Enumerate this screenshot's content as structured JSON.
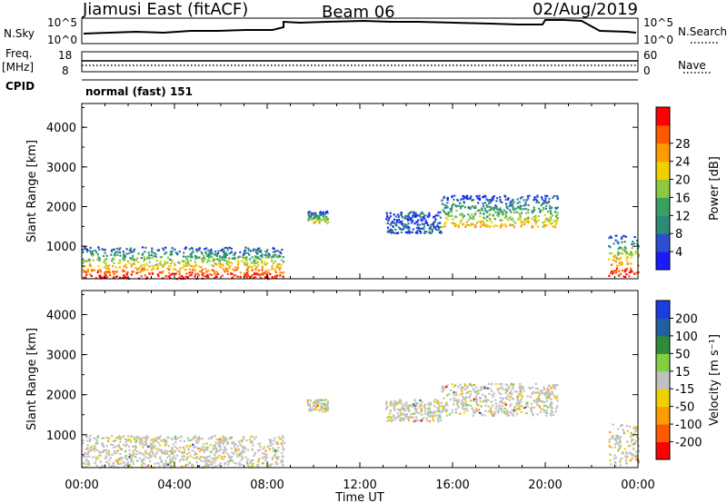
{
  "header": {
    "radar": "Jiamusi East (fitACF)",
    "beam": "Beam 06",
    "date": "02/Aug/2019"
  },
  "sky_panel": {
    "left_label": "N.Sky",
    "left_ticks": [
      "10^5",
      "10^0"
    ],
    "right_ticks": [
      "10^5",
      "10^0"
    ],
    "right_label": "N.Search"
  },
  "freq_panel": {
    "left_label_1": "Freq.",
    "left_label_2": "[MHz]",
    "left_ticks": [
      "18",
      "8"
    ],
    "right_ticks": [
      "60",
      "0"
    ],
    "right_label": "Nave"
  },
  "cpid": {
    "label": "CPID",
    "value": "normal (fast) 151"
  },
  "colors": {
    "power_scale": [
      "#1a1aff",
      "#2a4fd0",
      "#2b8a78",
      "#3aa060",
      "#8cc840",
      "#f0d000",
      "#ff9a00",
      "#ff5a00",
      "#ff0000"
    ],
    "velocity_scale": [
      "#1a3fe0",
      "#2060a0",
      "#2f8a3a",
      "#80d040",
      "#c0c0c0",
      "#f0d000",
      "#ff9a00",
      "#ff5a00",
      "#ff0000"
    ]
  },
  "chart_data": [
    {
      "type": "heatmap",
      "title": "",
      "ylabel": "Slant Range [km]",
      "xlabel": "Time UT",
      "x_ticks": [
        "00:00",
        "04:00",
        "08:00",
        "12:00",
        "16:00",
        "20:00",
        "00:00"
      ],
      "y_ticks": [
        "1000",
        "2000",
        "3000",
        "4000"
      ],
      "ylim": [
        180,
        4600
      ],
      "colorbar_label": "Power [dB]",
      "colorbar_ticks": [
        "4",
        "8",
        "12",
        "16",
        "20",
        "24",
        "28"
      ],
      "echo_regions": [
        {
          "t_start": 0.0,
          "t_end": 8.7,
          "range_low": 200,
          "range_high": 1000,
          "level": "strong"
        },
        {
          "t_start": 9.7,
          "t_end": 10.6,
          "range_low": 1600,
          "range_high": 1900,
          "level": "medium"
        },
        {
          "t_start": 13.1,
          "t_end": 15.5,
          "range_low": 1350,
          "range_high": 1900,
          "level": "weak"
        },
        {
          "t_start": 15.5,
          "t_end": 20.5,
          "range_low": 1500,
          "range_high": 2300,
          "level": "medium"
        },
        {
          "t_start": 22.7,
          "t_end": 24.0,
          "range_low": 250,
          "range_high": 1300,
          "level": "strong"
        }
      ]
    },
    {
      "type": "heatmap",
      "title": "",
      "ylabel": "Slant Range [km]",
      "xlabel": "Time UT",
      "x_ticks": [
        "00:00",
        "04:00",
        "08:00",
        "12:00",
        "16:00",
        "20:00",
        "00:00"
      ],
      "y_ticks": [
        "1000",
        "2000",
        "3000",
        "4000"
      ],
      "ylim": [
        180,
        4600
      ],
      "colorbar_label": "Velocity [m s⁻¹]",
      "colorbar_ticks": [
        "200",
        "100",
        "50",
        "15",
        "-15",
        "-50",
        "-100",
        "-200"
      ],
      "echo_regions": [
        {
          "t_start": 0.0,
          "t_end": 8.7,
          "range_low": 200,
          "range_high": 1000,
          "level": "near-zero"
        },
        {
          "t_start": 9.7,
          "t_end": 10.6,
          "range_low": 1600,
          "range_high": 1900,
          "level": "near-zero"
        },
        {
          "t_start": 13.1,
          "t_end": 15.5,
          "range_low": 1350,
          "range_high": 1900,
          "level": "near-zero"
        },
        {
          "t_start": 15.5,
          "t_end": 20.5,
          "range_low": 1500,
          "range_high": 2300,
          "level": "near-zero"
        },
        {
          "t_start": 22.7,
          "t_end": 24.0,
          "range_low": 250,
          "range_high": 1300,
          "level": "near-zero"
        }
      ]
    }
  ]
}
